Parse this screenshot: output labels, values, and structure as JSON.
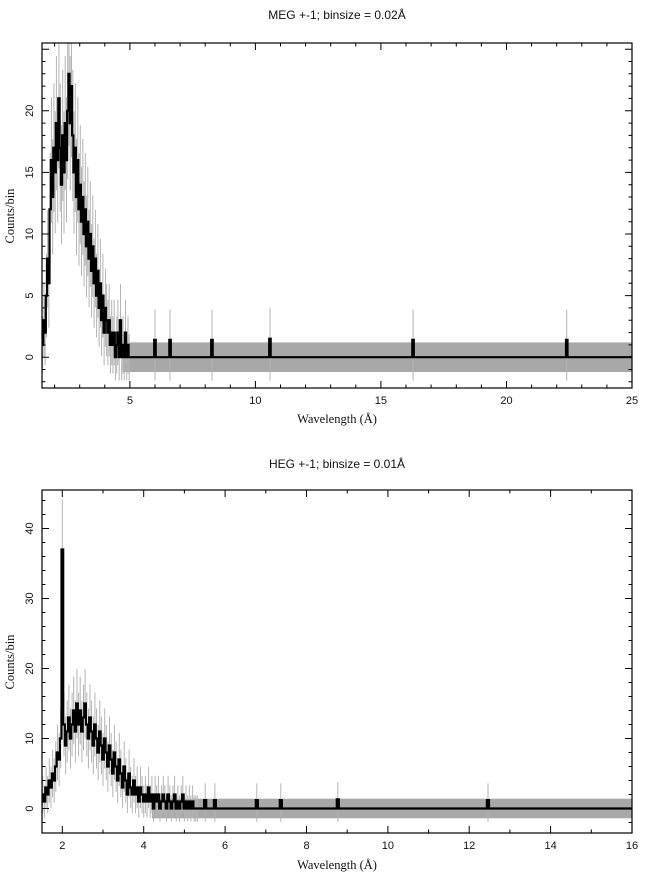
{
  "colors": {
    "background": "#ffffff",
    "histogram": "#000000",
    "error_bars": "#b4b4b4",
    "zero_band": "#a8a8a8",
    "frame": "#000000"
  },
  "chart_data": [
    {
      "type": "bar",
      "title": "MEG +-1; binsize = 0.02Å",
      "xlabel": "Wavelength (Å)",
      "ylabel": "Counts/bin",
      "instrument": "MEG +-1",
      "binsize_angstrom": 0.02,
      "xlim": [
        1.5,
        25
      ],
      "ylim": [
        -2.5,
        25.5
      ],
      "grid": false,
      "legend": false,
      "x_major_ticks": [
        5,
        10,
        15,
        20,
        25
      ],
      "x_tick_labels": [
        "5",
        "10",
        "15",
        "20",
        "25"
      ],
      "x_minor_step": 1,
      "y_ticks": [
        0,
        5,
        10,
        15,
        20,
        25
      ],
      "y_tick_labels": [
        "0",
        "5",
        "10",
        "15",
        "20",
        ""
      ],
      "y_minor_step": 1,
      "bins": {
        "x0": 1.5,
        "dx": 0.05,
        "counts": [
          1,
          3,
          2,
          5,
          8,
          6,
          12,
          16,
          13,
          17,
          15,
          19,
          16,
          21,
          17,
          14,
          18,
          15,
          19,
          16,
          20,
          23,
          19,
          22,
          18,
          15,
          17,
          13,
          16,
          12,
          14,
          11,
          13,
          10,
          12,
          9,
          11,
          8,
          10,
          7,
          9,
          6,
          8,
          5,
          7,
          4,
          6,
          3,
          5,
          2,
          4,
          3,
          2,
          3,
          1,
          2,
          1,
          2,
          0,
          1,
          2,
          0,
          3,
          0,
          1,
          0,
          2,
          0,
          1,
          0
        ]
      },
      "tail_spikes": [
        {
          "x": 6.0,
          "h": 1.4
        },
        {
          "x": 6.6,
          "h": 1.4
        },
        {
          "x": 8.27,
          "h": 1.4
        },
        {
          "x": 10.58,
          "h": 1.5
        },
        {
          "x": 16.28,
          "h": 1.4
        },
        {
          "x": 22.4,
          "h": 1.4
        }
      ],
      "spike_width": 0.06,
      "zero_band": {
        "x_start": 4.7,
        "x_end": 25,
        "half_height": 1.2
      }
    },
    {
      "type": "bar",
      "title": "HEG +-1; binsize = 0.01Å",
      "xlabel": "Wavelength (Å)",
      "ylabel": "Counts/bin",
      "instrument": "HEG +-1",
      "binsize_angstrom": 0.01,
      "xlim": [
        1.5,
        16
      ],
      "ylim": [
        -3.5,
        45.5
      ],
      "grid": false,
      "legend": false,
      "x_major_ticks": [
        2,
        4,
        6,
        8,
        10,
        12,
        14,
        16
      ],
      "x_tick_labels": [
        "2",
        "4",
        "6",
        "8",
        "10",
        "12",
        "14",
        "16"
      ],
      "x_minor_step": 1,
      "y_ticks": [
        0,
        10,
        20,
        30,
        40
      ],
      "y_tick_labels": [
        "0",
        "10",
        "20",
        "30",
        "40"
      ],
      "y_minor_step": 2,
      "bins": {
        "x0": 1.5,
        "dx": 0.04,
        "counts": [
          2,
          1,
          3,
          2,
          4,
          3,
          5,
          4,
          6,
          8,
          7,
          10,
          37,
          12,
          9,
          11,
          13,
          10,
          12,
          14,
          11,
          15,
          12,
          14,
          11,
          13,
          15,
          12,
          10,
          13,
          11,
          9,
          12,
          10,
          8,
          11,
          9,
          7,
          10,
          8,
          6,
          9,
          7,
          5,
          8,
          6,
          4,
          7,
          5,
          3,
          6,
          4,
          2,
          5,
          3,
          2,
          4,
          2,
          3,
          1,
          3,
          2,
          1,
          2,
          1,
          3,
          1,
          2,
          0,
          2,
          1,
          2,
          0,
          1,
          2,
          1,
          0,
          2,
          1,
          0,
          1,
          2,
          0,
          1,
          0,
          1,
          2,
          0,
          1,
          0,
          1,
          0,
          1,
          0,
          0,
          0
        ]
      },
      "tail_spikes": [
        {
          "x": 5.51,
          "h": 1.2
        },
        {
          "x": 5.75,
          "h": 1.2
        },
        {
          "x": 6.78,
          "h": 1.2
        },
        {
          "x": 7.37,
          "h": 1.2
        },
        {
          "x": 8.77,
          "h": 1.3
        },
        {
          "x": 12.46,
          "h": 1.2
        }
      ],
      "spike_width": 0.05,
      "zero_band": {
        "x_start": 4.2,
        "x_end": 16,
        "half_height": 1.4
      }
    }
  ]
}
